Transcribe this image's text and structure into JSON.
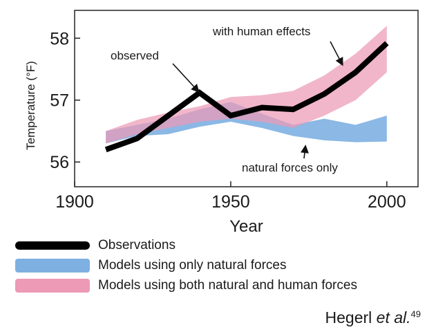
{
  "chart_data": {
    "type": "line",
    "xlabel": "Year",
    "ylabel": "Temperature (°F)",
    "xlim": [
      1900,
      2010
    ],
    "ylim": [
      55.6,
      58.45
    ],
    "x_ticks": [
      1900,
      1950,
      2000
    ],
    "y_ticks": [
      56,
      57,
      58
    ],
    "grid": false,
    "legend_position": "bottom",
    "observed": {
      "name": "Observations",
      "x": [
        1910,
        1920,
        1930,
        1940,
        1950,
        1960,
        1970,
        1980,
        1990,
        2000
      ],
      "y": [
        56.2,
        56.38,
        56.75,
        57.12,
        56.75,
        56.88,
        56.85,
        57.1,
        57.45,
        57.92
      ],
      "color": "#000000"
    },
    "bands": [
      {
        "name": "Models using only natural forces",
        "x": [
          1910,
          1920,
          1930,
          1940,
          1950,
          1960,
          1970,
          1980,
          1990,
          2000
        ],
        "low": [
          56.3,
          56.42,
          56.45,
          56.57,
          56.65,
          56.55,
          56.42,
          56.35,
          56.32,
          56.33
        ],
        "high": [
          56.5,
          56.6,
          56.7,
          56.85,
          56.97,
          56.78,
          56.6,
          56.7,
          56.6,
          56.75
        ],
        "color": "#7eb0e2"
      },
      {
        "name": "Models using both natural and human forces",
        "x": [
          1910,
          1920,
          1930,
          1940,
          1950,
          1960,
          1970,
          1980,
          1990,
          2000
        ],
        "low": [
          56.3,
          56.45,
          56.55,
          56.65,
          56.7,
          56.65,
          56.55,
          56.75,
          57.0,
          57.45
        ],
        "high": [
          56.5,
          56.68,
          56.8,
          56.9,
          57.05,
          57.08,
          57.15,
          57.4,
          57.75,
          58.2
        ],
        "color": "#ec9ab5"
      }
    ],
    "annotations": [
      {
        "text": "observed",
        "points_to": [
          1940,
          57.12
        ]
      },
      {
        "text": "with human effects",
        "points_to": [
          1986,
          57.55
        ]
      },
      {
        "text": "natural forces only",
        "points_to": [
          1974,
          56.28
        ]
      }
    ]
  },
  "legend": {
    "observations": "Observations",
    "natural": "Models using only natural forces",
    "human": "Models using both natural and human forces"
  },
  "citation": {
    "author": "Hegerl",
    "etal": "et al.",
    "ref": "49"
  }
}
